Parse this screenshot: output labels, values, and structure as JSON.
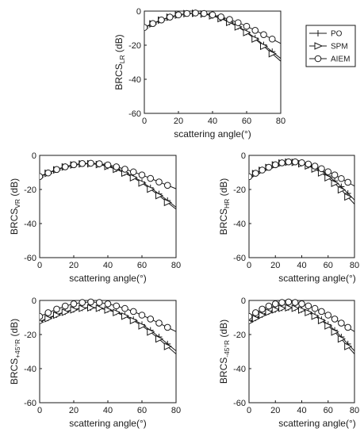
{
  "legend": {
    "entries": [
      {
        "name": "PO",
        "marker": "plus"
      },
      {
        "name": "SPM",
        "marker": "triangle-right"
      },
      {
        "name": "AIEM",
        "marker": "circle"
      }
    ],
    "placement": "right of top panel"
  },
  "chart_data": [
    {
      "type": "line",
      "ylabel": {
        "main": "BRCS",
        "sub": "LR",
        "unit": " (dB)"
      },
      "xlabel": "scattering angle(°)",
      "xlim": [
        0,
        80
      ],
      "ylim": [
        -60,
        0
      ],
      "xticks": [
        "0",
        "20",
        "40",
        "60",
        "80"
      ],
      "yticks": [
        "0",
        "-20",
        "-40",
        "-60"
      ],
      "grid": false,
      "x": [
        0,
        5,
        10,
        15,
        20,
        25,
        30,
        35,
        40,
        45,
        50,
        55,
        60,
        65,
        70,
        75
      ],
      "series": [
        {
          "name": "PO",
          "values": [
            -9.5,
            -7.2,
            -5.1,
            -3.4,
            -2.2,
            -1.4,
            -1.2,
            -1.6,
            -2.6,
            -4.2,
            -6.3,
            -9.0,
            -12.2,
            -15.8,
            -19.8,
            -23.8
          ]
        },
        {
          "name": "SPM",
          "values": [
            -9.8,
            -7.5,
            -5.3,
            -3.6,
            -2.3,
            -1.5,
            -1.3,
            -1.7,
            -2.8,
            -4.4,
            -6.6,
            -9.3,
            -12.6,
            -16.4,
            -20.6,
            -25.0
          ]
        },
        {
          "name": "AIEM",
          "values": [
            -9.6,
            -7.3,
            -5.2,
            -3.5,
            -2.2,
            -1.4,
            -1.1,
            -1.4,
            -2.2,
            -3.4,
            -4.9,
            -6.8,
            -8.9,
            -11.3,
            -13.8,
            -16.4
          ]
        }
      ]
    },
    {
      "type": "line",
      "ylabel": {
        "main": "BRCS",
        "sub": "VR",
        "unit": " (dB)"
      },
      "xlabel": "scattering angle(°)",
      "xlim": [
        0,
        80
      ],
      "ylim": [
        -60,
        0
      ],
      "xticks": [
        "0",
        "20",
        "40",
        "60",
        "80"
      ],
      "yticks": [
        "0",
        "-20",
        "-40",
        "-60"
      ],
      "grid": false,
      "x": [
        0,
        5,
        10,
        15,
        20,
        25,
        30,
        35,
        40,
        45,
        50,
        55,
        60,
        65,
        70,
        75
      ],
      "series": [
        {
          "name": "PO",
          "values": [
            -12.3,
            -10.2,
            -8.2,
            -6.6,
            -5.4,
            -4.8,
            -4.7,
            -5.2,
            -6.3,
            -7.9,
            -10.0,
            -12.6,
            -15.6,
            -19.0,
            -22.6,
            -26.5
          ]
        },
        {
          "name": "SPM",
          "values": [
            -12.6,
            -10.5,
            -8.5,
            -6.8,
            -5.6,
            -5.0,
            -4.9,
            -5.4,
            -6.5,
            -8.2,
            -10.4,
            -13.1,
            -16.2,
            -19.8,
            -23.6,
            -27.6
          ]
        },
        {
          "name": "AIEM",
          "values": [
            -12.4,
            -10.3,
            -8.3,
            -6.7,
            -5.5,
            -4.8,
            -4.6,
            -4.9,
            -5.6,
            -6.7,
            -8.1,
            -9.7,
            -11.5,
            -13.5,
            -15.6,
            -17.6
          ]
        }
      ]
    },
    {
      "type": "line",
      "ylabel": {
        "main": "BRCS",
        "sub": "HR",
        "unit": " (dB)"
      },
      "xlabel": "scattering angle(°)",
      "xlim": [
        0,
        80
      ],
      "ylim": [
        -60,
        0
      ],
      "xticks": [
        "0",
        "20",
        "40",
        "60",
        "80"
      ],
      "yticks": [
        "0",
        "-20",
        "-40",
        "-60"
      ],
      "grid": false,
      "x": [
        0,
        5,
        10,
        15,
        20,
        25,
        30,
        35,
        40,
        45,
        50,
        55,
        60,
        65,
        70,
        75
      ],
      "series": [
        {
          "name": "PO",
          "values": [
            -12.4,
            -10.4,
            -8.5,
            -6.9,
            -5.4,
            -4.3,
            -3.8,
            -3.9,
            -4.6,
            -5.8,
            -7.5,
            -9.6,
            -12.1,
            -15.0,
            -18.4,
            -22.3
          ]
        },
        {
          "name": "SPM",
          "values": [
            -12.7,
            -10.7,
            -8.8,
            -7.1,
            -5.6,
            -4.5,
            -4.0,
            -4.1,
            -4.9,
            -6.2,
            -8.0,
            -10.3,
            -13.1,
            -16.4,
            -20.2,
            -24.4
          ]
        },
        {
          "name": "AIEM",
          "values": [
            -12.5,
            -10.5,
            -8.6,
            -7.0,
            -5.5,
            -4.4,
            -3.8,
            -3.8,
            -4.3,
            -5.1,
            -6.3,
            -7.8,
            -9.6,
            -11.5,
            -13.6,
            -15.8
          ]
        }
      ]
    },
    {
      "type": "line",
      "ylabel": {
        "main": "BRCS",
        "sub": "+45°R",
        "unit": " (dB)"
      },
      "xlabel": "scattering angle(°)",
      "xlim": [
        0,
        80
      ],
      "ylim": [
        -60,
        0
      ],
      "xticks": [
        "0",
        "20",
        "40",
        "60",
        "80"
      ],
      "yticks": [
        "0",
        "-20",
        "-40",
        "-60"
      ],
      "grid": false,
      "x": [
        0,
        5,
        10,
        15,
        20,
        25,
        30,
        35,
        40,
        45,
        50,
        55,
        60,
        65,
        70,
        75
      ],
      "series": [
        {
          "name": "PO",
          "values": [
            -12.4,
            -10.3,
            -8.3,
            -6.6,
            -5.3,
            -4.4,
            -4.1,
            -4.4,
            -5.3,
            -6.7,
            -8.7,
            -11.2,
            -14.1,
            -17.5,
            -21.4,
            -25.5
          ]
        },
        {
          "name": "SPM",
          "values": [
            -12.7,
            -10.6,
            -8.6,
            -6.9,
            -5.5,
            -4.6,
            -4.3,
            -4.6,
            -5.6,
            -7.1,
            -9.2,
            -11.8,
            -14.9,
            -18.5,
            -22.6,
            -27.0
          ]
        },
        {
          "name": "AIEM",
          "values": [
            -9.4,
            -7.2,
            -5.1,
            -3.3,
            -2.0,
            -1.2,
            -0.9,
            -1.2,
            -2.0,
            -3.2,
            -4.7,
            -6.5,
            -8.6,
            -10.9,
            -13.3,
            -15.8
          ]
        }
      ]
    },
    {
      "type": "line",
      "ylabel": {
        "main": "BRCS",
        "sub": "-45°R",
        "unit": " (dB)"
      },
      "xlabel": "scattering angle(°)",
      "xlim": [
        0,
        80
      ],
      "ylim": [
        -60,
        0
      ],
      "xticks": [
        "0",
        "20",
        "40",
        "60",
        "80"
      ],
      "yticks": [
        "0",
        "-20",
        "-40",
        "-60"
      ],
      "grid": false,
      "x": [
        0,
        5,
        10,
        15,
        20,
        25,
        30,
        35,
        40,
        45,
        50,
        55,
        60,
        65,
        70,
        75
      ],
      "series": [
        {
          "name": "PO",
          "values": [
            -12.4,
            -10.3,
            -8.3,
            -6.6,
            -5.3,
            -4.4,
            -4.1,
            -4.4,
            -5.3,
            -6.7,
            -8.7,
            -11.2,
            -14.1,
            -17.5,
            -21.4,
            -25.5
          ]
        },
        {
          "name": "SPM",
          "values": [
            -12.7,
            -10.6,
            -8.6,
            -6.9,
            -5.5,
            -4.6,
            -4.3,
            -4.6,
            -5.6,
            -7.1,
            -9.2,
            -11.8,
            -14.9,
            -18.5,
            -22.6,
            -27.0
          ]
        },
        {
          "name": "AIEM",
          "values": [
            -9.4,
            -7.2,
            -5.1,
            -3.3,
            -2.0,
            -1.2,
            -0.9,
            -1.2,
            -2.0,
            -3.2,
            -4.7,
            -6.5,
            -8.6,
            -10.9,
            -13.3,
            -15.8
          ]
        }
      ]
    }
  ]
}
